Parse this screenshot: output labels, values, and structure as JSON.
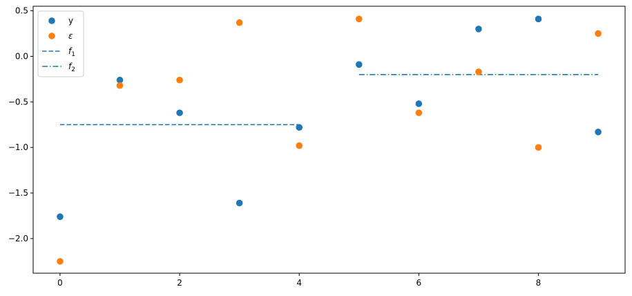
{
  "chart_data": {
    "type": "scatter",
    "title": "",
    "xlabel": "",
    "ylabel": "",
    "xlim": [
      -0.45,
      9.45
    ],
    "ylim": [
      -2.38,
      0.55
    ],
    "xticks": [
      0,
      2,
      4,
      6,
      8
    ],
    "yticks": [
      0.5,
      0.0,
      -0.5,
      -1.0,
      -1.5,
      -2.0
    ],
    "xtick_labels": [
      "0",
      "2",
      "4",
      "6",
      "8"
    ],
    "ytick_labels": [
      "0.5",
      "0.0",
      "−0.5",
      "−1.0",
      "−1.5",
      "−2.0"
    ],
    "grid": false,
    "legend_position": "top-left",
    "series": [
      {
        "name": "y",
        "kind": "scatter",
        "color": "#1f77b4",
        "x": [
          0,
          1,
          2,
          3,
          4,
          5,
          6,
          7,
          8,
          9
        ],
        "y": [
          -1.76,
          -0.26,
          -0.62,
          -1.61,
          -0.78,
          -0.09,
          -0.52,
          0.3,
          0.41,
          -0.83
        ]
      },
      {
        "name": "ε",
        "kind": "scatter",
        "color": "#ff7f0e",
        "x": [
          0,
          1,
          2,
          3,
          4,
          5,
          6,
          7,
          8,
          9
        ],
        "y": [
          -2.25,
          -0.32,
          -0.26,
          0.37,
          -0.98,
          0.41,
          -0.62,
          -0.17,
          -1.0,
          0.25
        ]
      },
      {
        "name": "f",
        "subscript": "1",
        "kind": "line",
        "dash": "dashed",
        "color": "#1f77b4",
        "x": [
          0,
          4
        ],
        "y": [
          -0.75,
          -0.75
        ]
      },
      {
        "name": "f",
        "subscript": "2",
        "kind": "line",
        "dash": "dashdot",
        "color": "#1f77b4",
        "x": [
          5,
          9
        ],
        "y": [
          -0.2,
          -0.2
        ]
      }
    ]
  }
}
